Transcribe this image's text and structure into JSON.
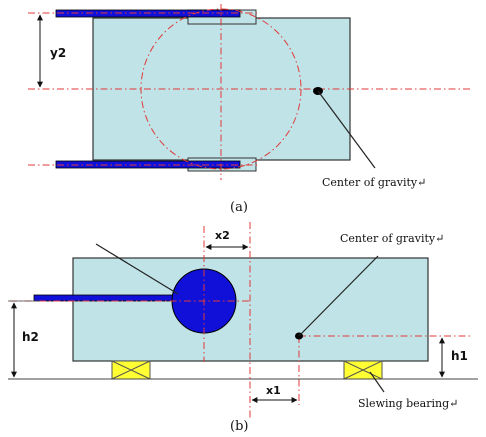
{
  "figure_a": {
    "caption": "(a)",
    "dim_y2": "y2",
    "cog_label": "Center of gravity↵"
  },
  "figure_b": {
    "caption": "(b)",
    "dim_x2": "x2",
    "dim_x1": "x1",
    "dim_h2": "h2",
    "dim_h1": "h1",
    "cog_label": "Center of gravity↵",
    "bearing_label": "Slewing bearing↵"
  },
  "colors": {
    "body_fill": "#bfe3e6",
    "outline": "#333333",
    "boom_blue": "#1010d8",
    "centerline_red": "#e03a3a",
    "bearing_yellow": "#ffff33"
  }
}
